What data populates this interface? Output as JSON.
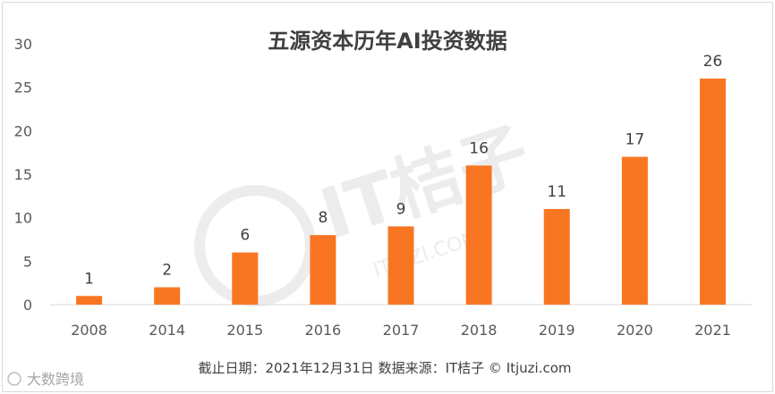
{
  "chart_data": {
    "type": "bar",
    "title": "五源资本历年AI投资数据",
    "categories": [
      "2008",
      "2014",
      "2015",
      "2016",
      "2017",
      "2018",
      "2019",
      "2020",
      "2021"
    ],
    "series": [
      {
        "values": [
          1,
          2,
          6,
          8,
          9,
          16,
          11,
          17,
          26
        ],
        "color": "#f87622"
      }
    ],
    "xlabel": "",
    "ylabel": "",
    "ylim": [
      0,
      30
    ],
    "yticks": [
      "0",
      "5",
      "10",
      "15",
      "20",
      "25",
      "30"
    ],
    "grid": false,
    "legend": "none",
    "data_labels": true
  },
  "source_note": "截止日期：2021年12月31日   数据来源：IT桔子 © Itjuzi.com",
  "watermark": "IT桔子",
  "watermark_domain": "ITJUZI.COM",
  "footer_logo": "大数跨境"
}
